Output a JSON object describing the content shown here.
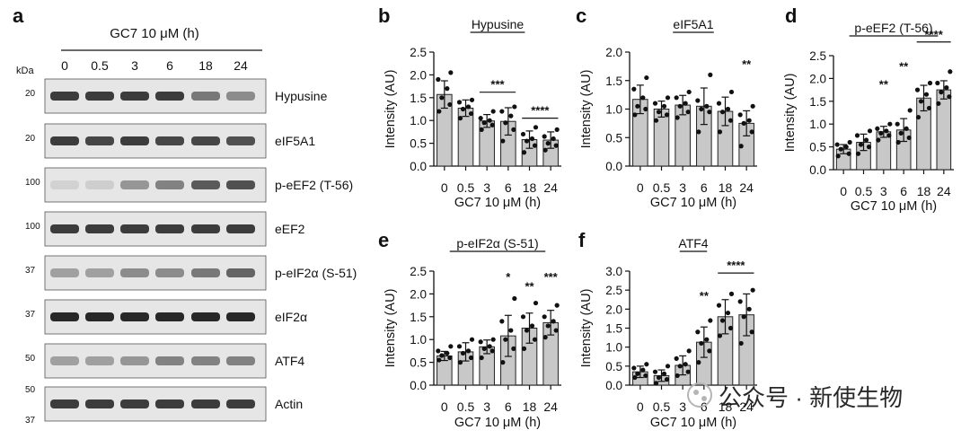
{
  "western_blot": {
    "panel_letter": "a",
    "treatment_label": "GC7 10 μM (h)",
    "kda_label": "kDa",
    "lanes": [
      "0",
      "0.5",
      "3",
      "6",
      "18",
      "24"
    ],
    "blots": [
      {
        "protein": "Hypusine",
        "markers": [
          "20"
        ],
        "band_strength": [
          0.85,
          0.85,
          0.85,
          0.85,
          0.55,
          0.45
        ]
      },
      {
        "protein": "eIF5A1",
        "markers": [
          "20"
        ],
        "band_strength": [
          0.85,
          0.8,
          0.85,
          0.8,
          0.8,
          0.75
        ]
      },
      {
        "protein": "p-eEF2 (T-56)",
        "markers": [
          "100"
        ],
        "band_strength": [
          0.1,
          0.12,
          0.4,
          0.5,
          0.7,
          0.75
        ]
      },
      {
        "protein": "eEF2",
        "markers": [
          "100"
        ],
        "band_strength": [
          0.85,
          0.85,
          0.85,
          0.85,
          0.85,
          0.85
        ]
      },
      {
        "protein": "p-eIF2α (S-51)",
        "markers": [
          "37"
        ],
        "band_strength": [
          0.35,
          0.35,
          0.45,
          0.45,
          0.55,
          0.65
        ]
      },
      {
        "protein": "eIF2α",
        "markers": [
          "37"
        ],
        "band_strength": [
          0.95,
          0.95,
          0.95,
          0.95,
          0.95,
          0.95
        ]
      },
      {
        "protein": "ATF4",
        "markers": [
          "50"
        ],
        "band_strength": [
          0.35,
          0.35,
          0.4,
          0.5,
          0.5,
          0.5
        ]
      },
      {
        "protein": "Actin",
        "markers": [
          "50",
          "37"
        ],
        "band_strength": [
          0.85,
          0.85,
          0.85,
          0.85,
          0.85,
          0.85
        ]
      }
    ]
  },
  "watermark": "公众号 · 新使生物",
  "chart_data": [
    {
      "panel": "b",
      "type": "bar",
      "title": "Hypusine",
      "xlabel": "GC7 10 μM (h)",
      "ylabel": "Intensity (AU)",
      "categories": [
        "0",
        "0.5",
        "3",
        "6",
        "18",
        "24"
      ],
      "ylim": [
        0,
        2.5
      ],
      "yticks": [
        "0.0",
        "0.5",
        "1.0",
        "1.5",
        "2.0",
        "2.5"
      ],
      "values": [
        1.57,
        1.27,
        0.99,
        0.98,
        0.58,
        0.57
      ],
      "sd": [
        0.3,
        0.18,
        0.14,
        0.3,
        0.19,
        0.18
      ],
      "points": [
        [
          1.2,
          1.35,
          1.5,
          1.7,
          1.9,
          2.05
        ],
        [
          1.05,
          1.15,
          1.25,
          1.3,
          1.4,
          1.45
        ],
        [
          0.8,
          0.9,
          0.95,
          1.0,
          1.05,
          1.2
        ],
        [
          0.55,
          0.8,
          0.95,
          1.1,
          1.2,
          1.3
        ],
        [
          0.3,
          0.45,
          0.55,
          0.6,
          0.7,
          0.85
        ],
        [
          0.35,
          0.45,
          0.5,
          0.6,
          0.65,
          0.8
        ]
      ],
      "significance": [
        {
          "label": "***",
          "from": 2,
          "to": 3,
          "y": 1.62
        },
        {
          "label": "****",
          "from": 4,
          "to": 5,
          "y": 1.05
        }
      ]
    },
    {
      "panel": "c",
      "type": "bar",
      "title": "eIF5A1",
      "xlabel": "GC7 10 μM (h)",
      "ylabel": "Intensity (AU)",
      "categories": [
        "0",
        "0.5",
        "3",
        "6",
        "18",
        "24"
      ],
      "ylim": [
        0,
        2.0
      ],
      "yticks": [
        "0.0",
        "0.5",
        "1.0",
        "1.5",
        "2.0"
      ],
      "values": [
        1.17,
        1.0,
        1.07,
        1.05,
        0.96,
        0.75
      ],
      "sd": [
        0.25,
        0.14,
        0.17,
        0.32,
        0.25,
        0.22
      ],
      "points": [
        [
          0.9,
          1.0,
          1.05,
          1.2,
          1.35,
          1.55
        ],
        [
          0.8,
          0.9,
          0.95,
          1.05,
          1.1,
          1.2
        ],
        [
          0.85,
          0.95,
          1.05,
          1.1,
          1.2,
          1.3
        ],
        [
          0.6,
          0.95,
          1.0,
          1.05,
          1.15,
          1.6
        ],
        [
          0.6,
          0.8,
          0.95,
          1.0,
          1.1,
          1.3
        ],
        [
          0.35,
          0.6,
          0.75,
          0.8,
          0.9,
          1.05
        ]
      ],
      "significance": [
        {
          "label": "**",
          "from": 5,
          "to": 5,
          "y": 1.65,
          "no_bar": true
        }
      ]
    },
    {
      "panel": "d",
      "type": "bar",
      "title": "p-eEF2 (T-56)",
      "xlabel": "GC7 10 μM (h)",
      "ylabel": "Intensity (AU)",
      "categories": [
        "0",
        "0.5",
        "3",
        "6",
        "18",
        "24"
      ],
      "ylim": [
        0,
        2.5
      ],
      "yticks": [
        "0.0",
        "0.5",
        "1.0",
        "1.5",
        "2.0",
        "2.5"
      ],
      "values": [
        0.45,
        0.6,
        0.83,
        0.87,
        1.57,
        1.75
      ],
      "sd": [
        0.1,
        0.18,
        0.12,
        0.25,
        0.28,
        0.2
      ],
      "points": [
        [
          0.3,
          0.35,
          0.45,
          0.5,
          0.55,
          0.6
        ],
        [
          0.35,
          0.5,
          0.55,
          0.65,
          0.75,
          0.85
        ],
        [
          0.65,
          0.75,
          0.8,
          0.85,
          0.9,
          1.0
        ],
        [
          0.6,
          0.7,
          0.8,
          0.9,
          1.0,
          1.3
        ],
        [
          1.15,
          1.35,
          1.5,
          1.65,
          1.75,
          1.9
        ],
        [
          1.45,
          1.6,
          1.7,
          1.8,
          1.9,
          2.15
        ]
      ],
      "significance": [
        {
          "label": "**",
          "from": 2,
          "to": 2,
          "y": 1.7,
          "no_bar": true
        },
        {
          "label": "**",
          "from": 3,
          "to": 3,
          "y": 2.1,
          "no_bar": true
        },
        {
          "label": "****",
          "from": 4,
          "to": 5,
          "y": 2.8
        }
      ]
    },
    {
      "panel": "e",
      "type": "bar",
      "title": "p-eIF2α (S-51)",
      "xlabel": "GC7 10 μM (h)",
      "ylabel": "Intensity (AU)",
      "categories": [
        "0",
        "0.5",
        "3",
        "6",
        "18",
        "24"
      ],
      "ylim": [
        0,
        2.5
      ],
      "yticks": [
        "0.0",
        "0.5",
        "1.0",
        "1.5",
        "2.0",
        "2.5"
      ],
      "values": [
        0.64,
        0.73,
        0.84,
        1.08,
        1.25,
        1.37
      ],
      "sd": [
        0.1,
        0.2,
        0.15,
        0.45,
        0.33,
        0.27
      ],
      "points": [
        [
          0.55,
          0.6,
          0.65,
          0.7,
          0.75,
          0.85
        ],
        [
          0.5,
          0.6,
          0.7,
          0.75,
          0.85,
          1.0
        ],
        [
          0.6,
          0.75,
          0.8,
          0.85,
          0.95,
          1.0
        ],
        [
          0.5,
          0.8,
          1.0,
          1.2,
          1.4,
          1.9
        ],
        [
          0.8,
          1.0,
          1.2,
          1.3,
          1.5,
          1.8
        ],
        [
          1.05,
          1.2,
          1.3,
          1.4,
          1.5,
          1.75
        ]
      ],
      "significance": [
        {
          "label": "*",
          "from": 3,
          "to": 3,
          "y": 2.2,
          "no_bar": true
        },
        {
          "label": "**",
          "from": 4,
          "to": 4,
          "y": 2.0,
          "no_bar": true
        },
        {
          "label": "***",
          "from": 5,
          "to": 5,
          "y": 2.2,
          "no_bar": true
        }
      ]
    },
    {
      "panel": "f",
      "type": "bar",
      "title": "ATF4",
      "xlabel": "GC7 10 μM (h)",
      "ylabel": "Intensity (AU)",
      "categories": [
        "0",
        "0.5",
        "3",
        "6",
        "18",
        "24"
      ],
      "ylim": [
        0,
        3.0
      ],
      "yticks": [
        "0.0",
        "0.5",
        "1.0",
        "1.5",
        "2.0",
        "2.5",
        "3.0"
      ],
      "values": [
        0.35,
        0.25,
        0.52,
        1.13,
        1.8,
        1.85
      ],
      "sd": [
        0.15,
        0.15,
        0.25,
        0.4,
        0.45,
        0.55
      ],
      "points": [
        [
          0.2,
          0.25,
          0.3,
          0.4,
          0.45,
          0.55
        ],
        [
          0.05,
          0.15,
          0.2,
          0.3,
          0.35,
          0.5
        ],
        [
          0.25,
          0.35,
          0.5,
          0.55,
          0.7,
          0.9
        ],
        [
          0.6,
          0.9,
          1.1,
          1.2,
          1.4,
          1.7
        ],
        [
          1.3,
          1.5,
          1.7,
          1.9,
          2.1,
          2.4
        ],
        [
          1.1,
          1.4,
          1.8,
          2.0,
          2.2,
          2.5
        ]
      ],
      "significance": [
        {
          "label": "**",
          "from": 3,
          "to": 3,
          "y": 2.15,
          "no_bar": true
        },
        {
          "label": "****",
          "from": 4,
          "to": 5,
          "y": 2.95
        }
      ]
    }
  ]
}
